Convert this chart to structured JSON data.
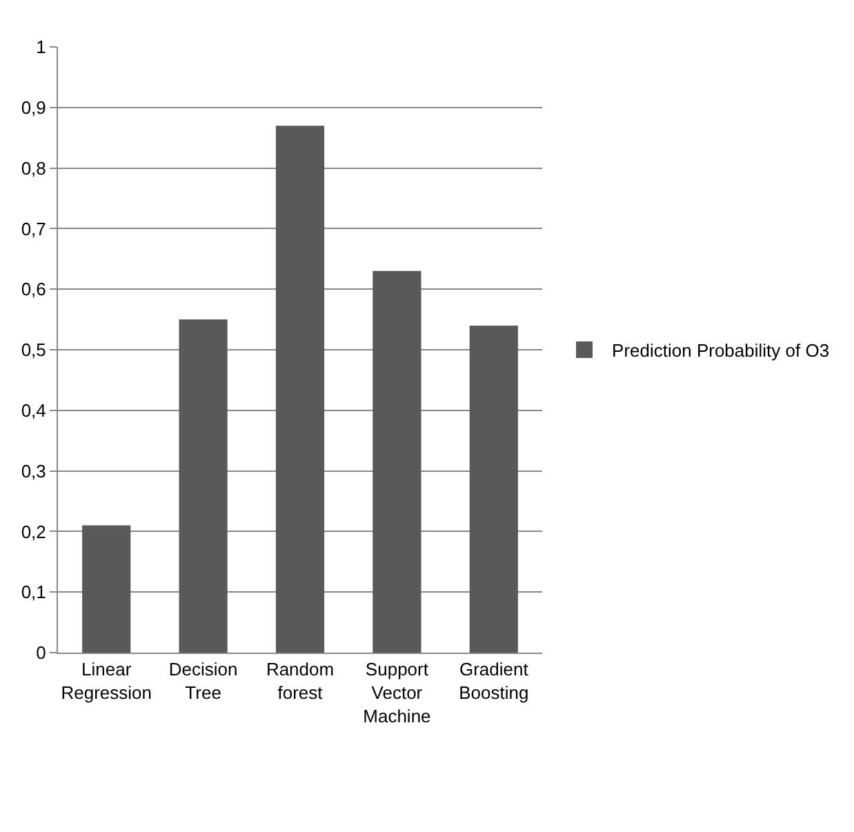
{
  "chart_data": {
    "type": "bar",
    "categories": [
      "Linear Regression",
      "Decision Tree",
      "Random forest",
      "Support Vector Machine",
      "Gradient Boosting"
    ],
    "series": [
      {
        "name": "Prediction Probability of O3",
        "color": "#595959",
        "values": [
          0.21,
          0.55,
          0.87,
          0.63,
          0.54
        ]
      }
    ],
    "ylim": [
      0,
      1
    ],
    "yticks": [
      0,
      {
        "value": 0.1,
        "label": "0,1"
      },
      {
        "value": 0.2,
        "label": "0,2"
      },
      {
        "value": 0.3,
        "label": "0,3"
      },
      {
        "value": 0.4,
        "label": "0,4"
      },
      {
        "value": 0.5,
        "label": "0,5"
      },
      {
        "value": 0.6,
        "label": "0,6"
      },
      {
        "value": 0.7,
        "label": "0,7"
      },
      {
        "value": 0.8,
        "label": "0,8"
      },
      {
        "value": 0.9,
        "label": "0,9"
      },
      1
    ],
    "grid": "y",
    "legend": "right"
  }
}
